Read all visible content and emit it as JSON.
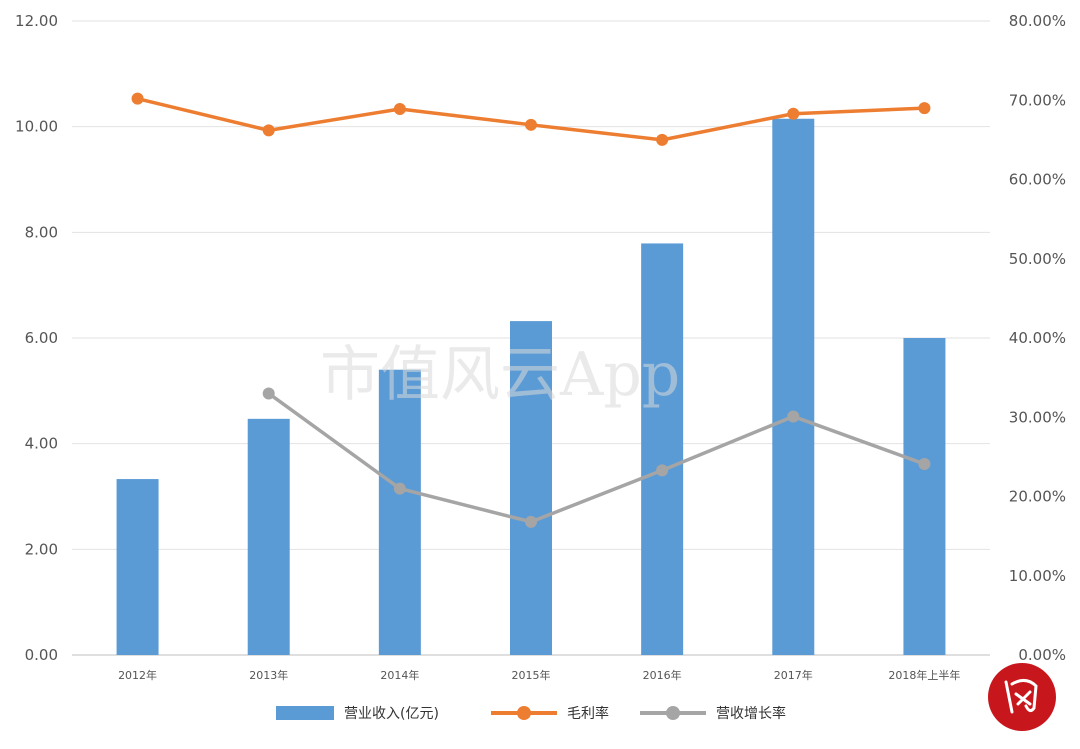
{
  "watermark": "市值风云App",
  "chart_data": {
    "type": "bar+line",
    "categories": [
      "2012年",
      "2013年",
      "2014年",
      "2015年",
      "2016年",
      "2017年",
      "2018年上半年"
    ],
    "left_axis": {
      "ylim": [
        0,
        12
      ],
      "ticks": [
        "0.00",
        "2.00",
        "4.00",
        "6.00",
        "8.00",
        "10.00",
        "12.00"
      ]
    },
    "right_axis": {
      "ylim": [
        0,
        80
      ],
      "ticks": [
        "0.00%",
        "10.00%",
        "20.00%",
        "30.00%",
        "40.00%",
        "50.00%",
        "60.00%",
        "70.00%",
        "80.00%"
      ]
    },
    "grid": true,
    "legend_position": "bottom",
    "series": [
      {
        "name": "营业收入(亿元)",
        "type": "bar",
        "axis": "left",
        "color": "#5b9bd5",
        "values": [
          3.33,
          4.47,
          5.4,
          6.32,
          7.79,
          10.15,
          6.0
        ]
      },
      {
        "name": "毛利率",
        "type": "line",
        "axis": "right",
        "color": "#ed7d31",
        "values": [
          70.2,
          66.2,
          68.9,
          66.9,
          65.0,
          68.3,
          69.0
        ]
      },
      {
        "name": "营收增长率",
        "type": "line",
        "axis": "right",
        "color": "#a5a5a5",
        "values": [
          null,
          33.0,
          21.0,
          16.8,
          23.3,
          30.1,
          24.1
        ]
      }
    ]
  }
}
